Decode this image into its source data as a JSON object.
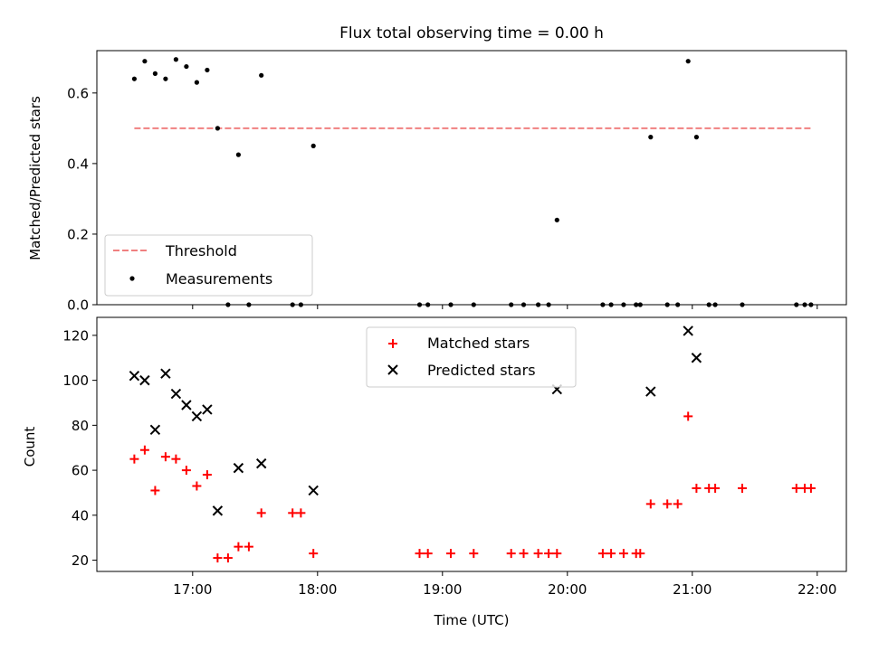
{
  "chart_data": [
    {
      "type": "scatter",
      "title": "Flux total observing time = 0.00 h",
      "ylabel": "Matched/Predicted stars",
      "xlabel": "",
      "xlim": [
        "16:14",
        "22:14"
      ],
      "ylim": [
        0,
        0.72
      ],
      "yticks": [
        0.0,
        0.2,
        0.4,
        0.6
      ],
      "ytick_labels": [
        "0.0",
        "0.2",
        "0.4",
        "0.6"
      ],
      "xticks": [
        "17:00",
        "18:00",
        "19:00",
        "20:00",
        "21:00",
        "22:00"
      ],
      "legend_position": "lower-left",
      "threshold": {
        "name": "Threshold",
        "value": 0.5,
        "x_start": "16:32",
        "x_end": "21:57",
        "color": "#f08080",
        "style": "dashed"
      },
      "series": [
        {
          "name": "Measurements",
          "color": "#000000",
          "marker": "dot",
          "points": [
            [
              "16:32",
              0.64
            ],
            [
              "16:37",
              0.69
            ],
            [
              "16:42",
              0.655
            ],
            [
              "16:47",
              0.64
            ],
            [
              "16:52",
              0.695
            ],
            [
              "16:57",
              0.675
            ],
            [
              "17:02",
              0.63
            ],
            [
              "17:07",
              0.665
            ],
            [
              "17:12",
              0.5
            ],
            [
              "17:17",
              0.0
            ],
            [
              "17:22",
              0.425
            ],
            [
              "17:27",
              0.0
            ],
            [
              "17:33",
              0.65
            ],
            [
              "17:48",
              0.0
            ],
            [
              "17:52",
              0.0
            ],
            [
              "17:58",
              0.45
            ],
            [
              "18:49",
              0.0
            ],
            [
              "18:53",
              0.0
            ],
            [
              "19:04",
              0.0
            ],
            [
              "19:15",
              0.0
            ],
            [
              "19:33",
              0.0
            ],
            [
              "19:39",
              0.0
            ],
            [
              "19:46",
              0.0
            ],
            [
              "19:51",
              0.0
            ],
            [
              "19:55",
              0.24
            ],
            [
              "20:17",
              0.0
            ],
            [
              "20:21",
              0.0
            ],
            [
              "20:27",
              0.0
            ],
            [
              "20:33",
              0.0
            ],
            [
              "20:35",
              0.0
            ],
            [
              "20:40",
              0.475
            ],
            [
              "20:48",
              0.0
            ],
            [
              "20:53",
              0.0
            ],
            [
              "20:58",
              0.69
            ],
            [
              "21:02",
              0.475
            ],
            [
              "21:08",
              0.0
            ],
            [
              "21:11",
              0.0
            ],
            [
              "21:24",
              0.0
            ],
            [
              "21:50",
              0.0
            ],
            [
              "21:54",
              0.0
            ],
            [
              "21:57",
              0.0
            ]
          ]
        }
      ]
    },
    {
      "type": "scatter",
      "title": "",
      "xlabel": "Time (UTC)",
      "ylabel": "Count",
      "xlim": [
        "16:14",
        "22:14"
      ],
      "ylim": [
        15,
        128
      ],
      "yticks": [
        20,
        40,
        60,
        80,
        100,
        120
      ],
      "xticks": [
        "17:00",
        "18:00",
        "19:00",
        "20:00",
        "21:00",
        "22:00"
      ],
      "legend_position": "top-center",
      "series": [
        {
          "name": "Matched stars",
          "color": "#ff0000",
          "marker": "plus",
          "points": [
            [
              "16:32",
              65
            ],
            [
              "16:37",
              69
            ],
            [
              "16:42",
              51
            ],
            [
              "16:47",
              66
            ],
            [
              "16:52",
              65
            ],
            [
              "16:57",
              60
            ],
            [
              "17:02",
              53
            ],
            [
              "17:07",
              58
            ],
            [
              "17:12",
              21
            ],
            [
              "17:17",
              21
            ],
            [
              "17:22",
              26
            ],
            [
              "17:27",
              26
            ],
            [
              "17:33",
              41
            ],
            [
              "17:48",
              41
            ],
            [
              "17:52",
              41
            ],
            [
              "17:58",
              23
            ],
            [
              "18:49",
              23
            ],
            [
              "18:53",
              23
            ],
            [
              "19:04",
              23
            ],
            [
              "19:15",
              23
            ],
            [
              "19:33",
              23
            ],
            [
              "19:39",
              23
            ],
            [
              "19:46",
              23
            ],
            [
              "19:51",
              23
            ],
            [
              "19:55",
              23
            ],
            [
              "20:17",
              23
            ],
            [
              "20:21",
              23
            ],
            [
              "20:27",
              23
            ],
            [
              "20:33",
              23
            ],
            [
              "20:35",
              23
            ],
            [
              "20:40",
              45
            ],
            [
              "20:48",
              45
            ],
            [
              "20:53",
              45
            ],
            [
              "20:58",
              84
            ],
            [
              "21:02",
              52
            ],
            [
              "21:08",
              52
            ],
            [
              "21:11",
              52
            ],
            [
              "21:24",
              52
            ],
            [
              "21:50",
              52
            ],
            [
              "21:54",
              52
            ],
            [
              "21:57",
              52
            ]
          ]
        },
        {
          "name": "Predicted stars",
          "color": "#000000",
          "marker": "x",
          "points": [
            [
              "16:32",
              102
            ],
            [
              "16:37",
              100
            ],
            [
              "16:42",
              78
            ],
            [
              "16:47",
              103
            ],
            [
              "16:52",
              94
            ],
            [
              "16:57",
              89
            ],
            [
              "17:02",
              84
            ],
            [
              "17:07",
              87
            ],
            [
              "17:12",
              42
            ],
            [
              "17:22",
              61
            ],
            [
              "17:33",
              63
            ],
            [
              "17:58",
              51
            ],
            [
              "19:55",
              96
            ],
            [
              "20:40",
              95
            ],
            [
              "20:58",
              122
            ],
            [
              "21:02",
              110
            ]
          ]
        }
      ]
    }
  ]
}
